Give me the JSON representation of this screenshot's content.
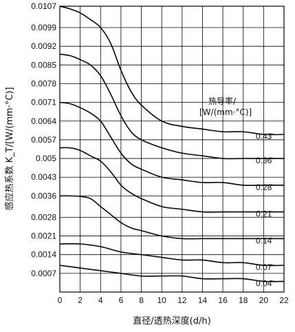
{
  "chart_data": {
    "type": "line",
    "xlabel": "直径/透热深度(d/h)",
    "ylabel": "感应热系数 K_T/[W/(mm·°C)]",
    "xlim": [
      0,
      22
    ],
    "ylim": [
      0,
      0.0107
    ],
    "x_ticks": [
      "0",
      "2",
      "4",
      "6",
      "8",
      "10",
      "12",
      "14",
      "16",
      "18",
      "20",
      "22"
    ],
    "y_ticks": [
      "0.0107",
      "0.0099",
      "0.0092",
      "0.0085",
      "0.0078",
      "0.0071",
      "0.0064",
      "0.0057",
      "0.005",
      "0.0043",
      "0.0036",
      "0.0028",
      "0.0021",
      "0.0014",
      "0.0007"
    ],
    "grid": true,
    "legend_title": "热导率/[W/(mm·°C)]",
    "legend_title_line1": "热导率/",
    "legend_title_line2": "[W/(mm·°C)]",
    "series": [
      {
        "name": "0.43",
        "points": [
          [
            0,
            0.0107
          ],
          [
            1,
            0.0106
          ],
          [
            2,
            0.01045
          ],
          [
            3,
            0.0102
          ],
          [
            4,
            0.0099
          ],
          [
            5,
            0.0093
          ],
          [
            6,
            0.0083
          ],
          [
            7,
            0.0075
          ],
          [
            8,
            0.007
          ],
          [
            10,
            0.0064
          ],
          [
            12,
            0.0062
          ],
          [
            14,
            0.0061
          ],
          [
            16,
            0.006
          ],
          [
            18,
            0.006
          ],
          [
            20,
            0.0059
          ],
          [
            22,
            0.0059
          ]
        ]
      },
      {
        "name": "0.36",
        "points": [
          [
            0,
            0.0089
          ],
          [
            1,
            0.00885
          ],
          [
            2,
            0.0087
          ],
          [
            3,
            0.0085
          ],
          [
            4,
            0.0081
          ],
          [
            5,
            0.0074
          ],
          [
            6,
            0.0066
          ],
          [
            7,
            0.006
          ],
          [
            8,
            0.0057
          ],
          [
            10,
            0.0054
          ],
          [
            12,
            0.0052
          ],
          [
            14,
            0.0051
          ],
          [
            16,
            0.005
          ],
          [
            18,
            0.005
          ],
          [
            20,
            0.005
          ],
          [
            22,
            0.005
          ]
        ]
      },
      {
        "name": "0.28",
        "points": [
          [
            0,
            0.0071
          ],
          [
            1,
            0.00705
          ],
          [
            2,
            0.0069
          ],
          [
            3,
            0.0067
          ],
          [
            4,
            0.0064
          ],
          [
            5,
            0.0058
          ],
          [
            6,
            0.0052
          ],
          [
            7,
            0.0048
          ],
          [
            8,
            0.0046
          ],
          [
            10,
            0.0043
          ],
          [
            12,
            0.0042
          ],
          [
            14,
            0.0041
          ],
          [
            16,
            0.0041
          ],
          [
            18,
            0.004
          ],
          [
            20,
            0.004
          ],
          [
            22,
            0.004
          ]
        ]
      },
      {
        "name": "0.21",
        "points": [
          [
            0,
            0.0054
          ],
          [
            1,
            0.0054
          ],
          [
            2,
            0.0053
          ],
          [
            3,
            0.0051
          ],
          [
            4,
            0.0049
          ],
          [
            5,
            0.0045
          ],
          [
            6,
            0.004
          ],
          [
            7,
            0.0037
          ],
          [
            8,
            0.0035
          ],
          [
            10,
            0.0032
          ],
          [
            12,
            0.0031
          ],
          [
            14,
            0.003
          ],
          [
            16,
            0.003
          ],
          [
            18,
            0.003
          ],
          [
            20,
            0.003
          ],
          [
            22,
            0.003
          ]
        ]
      },
      {
        "name": "0.14",
        "points": [
          [
            0,
            0.0036
          ],
          [
            1,
            0.0036
          ],
          [
            2,
            0.00358
          ],
          [
            3,
            0.0035
          ],
          [
            4,
            0.0032
          ],
          [
            5,
            0.0029
          ],
          [
            6,
            0.0026
          ],
          [
            7,
            0.0024
          ],
          [
            8,
            0.0023
          ],
          [
            10,
            0.0021
          ],
          [
            12,
            0.002
          ],
          [
            14,
            0.002
          ],
          [
            16,
            0.002
          ],
          [
            18,
            0.002
          ],
          [
            20,
            0.002
          ],
          [
            22,
            0.002
          ]
        ]
      },
      {
        "name": "0.07",
        "points": [
          [
            0,
            0.0018
          ],
          [
            2,
            0.0018
          ],
          [
            4,
            0.0017
          ],
          [
            6,
            0.0015
          ],
          [
            8,
            0.0014
          ],
          [
            10,
            0.0013
          ],
          [
            12,
            0.0012
          ],
          [
            14,
            0.0012
          ],
          [
            16,
            0.0011
          ],
          [
            18,
            0.0011
          ],
          [
            20,
            0.001
          ],
          [
            22,
            0.001
          ]
        ]
      },
      {
        "name": "0.04",
        "points": [
          [
            0,
            0.001
          ],
          [
            2,
            0.0009
          ],
          [
            4,
            0.0008
          ],
          [
            6,
            0.0007
          ],
          [
            8,
            0.0006
          ],
          [
            10,
            0.0006
          ],
          [
            12,
            0.0006
          ],
          [
            14,
            0.0005
          ],
          [
            16,
            0.0005
          ],
          [
            18,
            0.0005
          ],
          [
            20,
            0.0004
          ],
          [
            22,
            0.0004
          ]
        ]
      }
    ]
  }
}
